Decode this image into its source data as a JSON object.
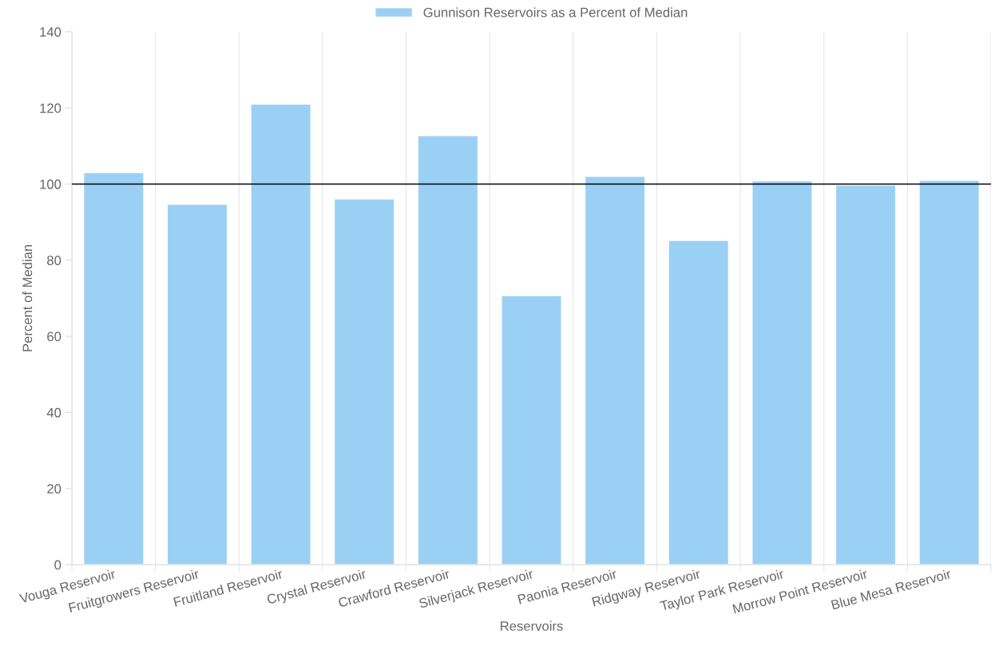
{
  "chart_data": {
    "type": "bar",
    "categories": [
      "Vouga Reservoir",
      "Fruitgrowers Reservoir",
      "Fruitland Reservoir",
      "Crystal Reservoir",
      "Crawford Reservoir",
      "Silverjack Reservoir",
      "Paonia Reservoir",
      "Ridgway Reservoir",
      "Taylor Park Reservoir",
      "Morrow Point Reservoir",
      "Blue Mesa Reservoir"
    ],
    "series": [
      {
        "name": "Gunnison Reservoirs as a Percent of Median",
        "color": "#9bd0f5",
        "values": [
          103,
          94.7,
          121,
          96.1,
          112.7,
          70.7,
          102,
          85.2,
          100.8,
          99.7,
          101
        ]
      }
    ],
    "xlabel": "Reservoirs",
    "ylabel": "Percent of Median",
    "ylim": [
      0,
      140
    ],
    "yticks": [
      0,
      20,
      40,
      60,
      80,
      100,
      120,
      140
    ],
    "ref_lines": [
      {
        "axis": "y",
        "value": 100,
        "color": "#000000"
      }
    ],
    "grid": "x",
    "legend": "top"
  }
}
